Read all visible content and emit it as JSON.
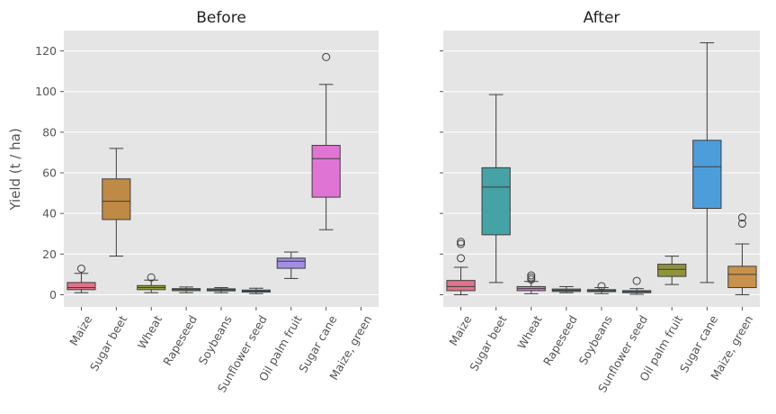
{
  "chart_data": {
    "type": "box",
    "ylabel": "Yield (t / ha)",
    "ylim": [
      -6,
      130
    ],
    "yticks": [
      0,
      20,
      40,
      60,
      80,
      100,
      120
    ],
    "grid": true,
    "categories": [
      "Maize",
      "Sugar beet",
      "Wheat",
      "Rapeseed",
      "Soybeans",
      "Sunflower seed",
      "Oil palm fruit",
      "Sugar cane",
      "Maize, green"
    ],
    "panels": [
      {
        "title": "Before",
        "boxes": [
          {
            "category": "Maize",
            "color": "#e0738a",
            "whisker_low": 1,
            "q1": 2.5,
            "median": 3.5,
            "q3": 6,
            "whisker_high": 10.5,
            "outliers": [
              12.8
            ]
          },
          {
            "category": "Sugar beet",
            "color": "#bf8a45",
            "whisker_low": 19,
            "q1": 37,
            "median": 46,
            "q3": 57,
            "whisker_high": 72,
            "outliers": []
          },
          {
            "category": "Wheat",
            "color": "#9aa33c",
            "whisker_low": 1,
            "q1": 2.5,
            "median": 3.5,
            "q3": 4.5,
            "whisker_high": 7.2,
            "outliers": [
              8.5
            ]
          },
          {
            "category": "Rapeseed",
            "color": "#55a55f",
            "whisker_low": 1,
            "q1": 2,
            "median": 2.6,
            "q3": 3,
            "whisker_high": 3.8,
            "outliers": []
          },
          {
            "category": "Soybeans",
            "color": "#4aa89a",
            "whisker_low": 1,
            "q1": 1.9,
            "median": 2.4,
            "q3": 2.9,
            "whisker_high": 3.5,
            "outliers": []
          },
          {
            "category": "Sunflower seed",
            "color": "#4a9ec0",
            "whisker_low": 0.5,
            "q1": 1.3,
            "median": 1.8,
            "q3": 2.3,
            "whisker_high": 3.2,
            "outliers": []
          },
          {
            "category": "Oil palm fruit",
            "color": "#a48ee3",
            "whisker_low": 8,
            "q1": 13,
            "median": 16.5,
            "q3": 18,
            "whisker_high": 21,
            "outliers": []
          },
          {
            "category": "Sugar cane",
            "color": "#e074d4",
            "whisker_low": 32,
            "q1": 48,
            "median": 67,
            "q3": 73.5,
            "whisker_high": 103.5,
            "outliers": [
              117
            ]
          }
        ]
      },
      {
        "title": "After",
        "boxes": [
          {
            "category": "Maize",
            "color": "#e0738a",
            "whisker_low": 0,
            "q1": 2,
            "median": 4,
            "q3": 7,
            "whisker_high": 13.5,
            "outliers": [
              18,
              25,
              26
            ]
          },
          {
            "category": "Sugar beet",
            "color": "#45a3a6",
            "whisker_low": 6,
            "q1": 29.5,
            "median": 53,
            "q3": 62.5,
            "whisker_high": 98.5,
            "outliers": []
          },
          {
            "category": "Wheat",
            "color": "#e074d4",
            "whisker_low": 0.5,
            "q1": 2,
            "median": 3,
            "q3": 4,
            "whisker_high": 6.5,
            "outliers": [
              7.5,
              8.5,
              9.5
            ]
          },
          {
            "category": "Rapeseed",
            "color": "#55a55f",
            "whisker_low": 1,
            "q1": 1.6,
            "median": 2.2,
            "q3": 2.8,
            "whisker_high": 4,
            "outliers": []
          },
          {
            "category": "Soybeans",
            "color": "#4aa89a",
            "whisker_low": 0.5,
            "q1": 1.5,
            "median": 2,
            "q3": 2.5,
            "whisker_high": 3.5,
            "outliers": [
              4.2
            ]
          },
          {
            "category": "Sunflower seed",
            "color": "#4a9ec0",
            "whisker_low": 0.2,
            "q1": 1,
            "median": 1.5,
            "q3": 2,
            "whisker_high": 3,
            "outliers": [
              6.8
            ]
          },
          {
            "category": "Oil palm fruit",
            "color": "#8f933a",
            "whisker_low": 5,
            "q1": 9,
            "median": 12.5,
            "q3": 15,
            "whisker_high": 19,
            "outliers": []
          },
          {
            "category": "Sugar cane",
            "color": "#4c9edb",
            "whisker_low": 6,
            "q1": 42.5,
            "median": 63,
            "q3": 76,
            "whisker_high": 124,
            "outliers": []
          },
          {
            "category": "Maize, green",
            "color": "#c9924a",
            "whisker_low": 0,
            "q1": 3.5,
            "median": 10,
            "q3": 14,
            "whisker_high": 25,
            "outliers": [
              35,
              38
            ]
          }
        ]
      }
    ]
  }
}
